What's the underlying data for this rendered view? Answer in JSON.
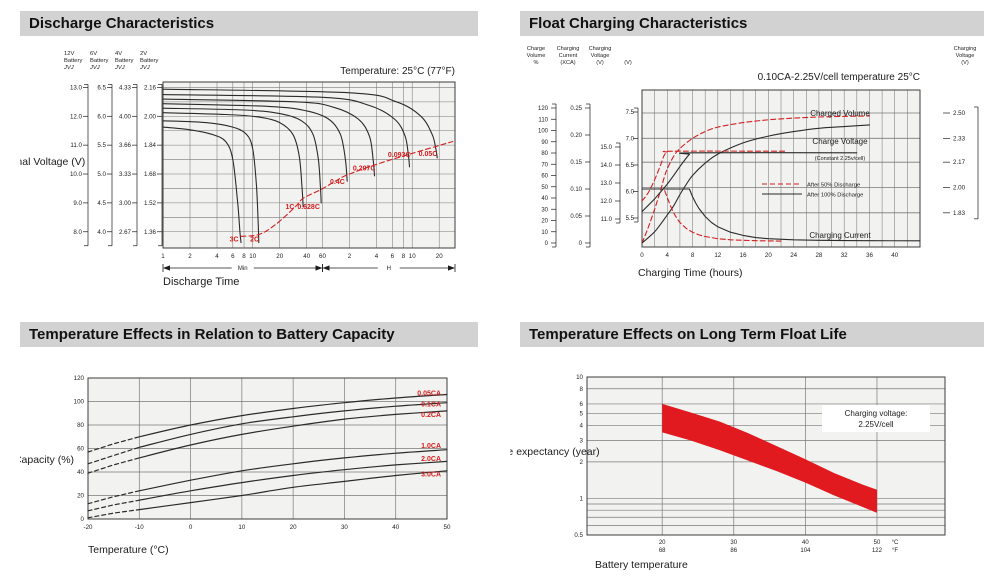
{
  "page": {
    "bg": "#ffffff",
    "header_bg": "#d2d2d2",
    "text": "#1c1c1c",
    "red": "#d32020",
    "band_red": "#e11a1f",
    "plot_bg": "#f2f2f0",
    "grid": "#7a7a7a",
    "border": "#3c3c3c",
    "curve": "#2b2b2b"
  },
  "sections": [
    {
      "title": "Discharge Characteristics"
    },
    {
      "title": "Float Charging Characteristics"
    },
    {
      "title": "Temperature Effects in Relation to Battery Capacity"
    },
    {
      "title": "Temperature Effects on Long Term Float Life"
    }
  ],
  "chart_data": [
    {
      "id": "discharge",
      "type": "line",
      "annotation": "Temperature: 25°C (77°F)",
      "ylabel": "Terminal Voltage (V)",
      "xlabel": "Discharge Time",
      "x_axis": {
        "min_ticks": [
          1,
          2,
          4,
          6,
          8,
          10,
          20,
          40,
          60
        ],
        "hour_ticks": [
          2,
          4,
          6,
          8,
          10,
          20
        ],
        "min_label": "Min",
        "hour_label": "H",
        "t_min": 1,
        "t_max": 1800
      },
      "scales": [
        {
          "header": [
            "12V",
            "Battery",
            "JVJ"
          ],
          "values": [
            "13.0",
            "12.0",
            "11.0",
            "10.0",
            "9.0",
            "8.0"
          ]
        },
        {
          "header": [
            "6V",
            "Battery",
            "JVJ"
          ],
          "values": [
            "6.5",
            "6.0",
            "5.5",
            "5.0",
            "4.5",
            "4.0"
          ]
        },
        {
          "header": [
            "4V",
            "Battery",
            "JVJ"
          ],
          "values": [
            "4.33",
            "4.00",
            "3.66",
            "3.33",
            "3.00",
            "2.67"
          ]
        },
        {
          "header": [
            "2V",
            "Battery",
            "JVJ"
          ],
          "values": [
            "2.16",
            "2.00",
            "1.84",
            "1.68",
            "1.52",
            "1.36"
          ]
        }
      ],
      "cell_values": [
        2.16,
        2.0,
        1.84,
        1.68,
        1.52,
        1.36
      ],
      "v_top": 2.19,
      "v_bottom": 1.27,
      "grid_step": 0.08,
      "series": [
        {
          "label": "3C",
          "label_at": [
            6.2,
            1.305
          ],
          "pts": [
            [
              1,
              1.94
            ],
            [
              2,
              1.925
            ],
            [
              3.5,
              1.9
            ],
            [
              5,
              1.86
            ],
            [
              6,
              1.76
            ],
            [
              6.8,
              1.52
            ],
            [
              7.2,
              1.36
            ],
            [
              7.4,
              1.3
            ]
          ]
        },
        {
          "label": "2C",
          "label_at": [
            10.5,
            1.305
          ],
          "pts": [
            [
              1,
              1.975
            ],
            [
              3,
              1.965
            ],
            [
              6,
              1.94
            ],
            [
              8.5,
              1.9
            ],
            [
              10,
              1.82
            ],
            [
              11,
              1.62
            ],
            [
              11.5,
              1.42
            ],
            [
              11.7,
              1.3
            ]
          ]
        },
        {
          "label": "1C",
          "label_at": [
            26,
            1.485
          ],
          "pts": [
            [
              1,
              2.02
            ],
            [
              5,
              2.01
            ],
            [
              12,
              1.995
            ],
            [
              20,
              1.965
            ],
            [
              28,
              1.9
            ],
            [
              33,
              1.78
            ],
            [
              35.5,
              1.6
            ],
            [
              36.5,
              1.5
            ]
          ]
        },
        {
          "label": "0.628C",
          "label_at": [
            42,
            1.485
          ],
          "pts": [
            [
              1,
              2.045
            ],
            [
              8,
              2.035
            ],
            [
              20,
              2.015
            ],
            [
              35,
              1.975
            ],
            [
              47,
              1.9
            ],
            [
              54,
              1.76
            ],
            [
              57,
              1.6
            ],
            [
              58,
              1.52
            ]
          ]
        },
        {
          "label": "0.4C",
          "label_at": [
            88,
            1.625
          ],
          "pts": [
            [
              1,
              2.07
            ],
            [
              15,
              2.055
            ],
            [
              40,
              2.03
            ],
            [
              70,
              1.985
            ],
            [
              95,
              1.9
            ],
            [
              108,
              1.76
            ],
            [
              113,
              1.64
            ]
          ]
        },
        {
          "label": "0.207C",
          "label_at": [
            175,
            1.7
          ],
          "pts": [
            [
              1,
              2.095
            ],
            [
              30,
              2.08
            ],
            [
              80,
              2.05
            ],
            [
              150,
              1.985
            ],
            [
              200,
              1.89
            ],
            [
              220,
              1.76
            ],
            [
              228,
              1.67
            ]
          ]
        },
        {
          "label": "0.093C",
          "label_at": [
            430,
            1.775
          ],
          "pts": [
            [
              1,
              2.12
            ],
            [
              60,
              2.105
            ],
            [
              200,
              2.06
            ],
            [
              380,
              1.985
            ],
            [
              500,
              1.89
            ],
            [
              545,
              1.78
            ],
            [
              560,
              1.72
            ]
          ]
        },
        {
          "label": "0.05C",
          "label_at": [
            900,
            1.78
          ],
          "pts": [
            [
              1,
              2.15
            ],
            [
              120,
              2.13
            ],
            [
              400,
              2.08
            ],
            [
              750,
              2.0
            ],
            [
              1000,
              1.9
            ],
            [
              1100,
              1.82
            ],
            [
              1140,
              1.77
            ]
          ]
        }
      ],
      "envelope": [
        [
          7.4,
          1.335
        ],
        [
          11.7,
          1.345
        ],
        [
          18,
          1.4
        ],
        [
          30,
          1.5
        ],
        [
          36.5,
          1.545
        ],
        [
          58,
          1.595
        ],
        [
          80,
          1.635
        ],
        [
          113,
          1.675
        ],
        [
          228,
          1.73
        ],
        [
          560,
          1.79
        ],
        [
          1140,
          1.835
        ],
        [
          1700,
          1.86
        ]
      ]
    },
    {
      "id": "float",
      "type": "line",
      "title": "0.10CA-2.25V/cell  temperature 25°C",
      "xlabel": "Charging Time (hours)",
      "x_ticks": [
        0,
        4,
        8,
        12,
        16,
        20,
        24,
        28,
        32,
        36,
        40
      ],
      "x_max": 44,
      "x_grid_step": 2,
      "axes": {
        "volume": {
          "header": [
            "Charge",
            "Volume",
            "%"
          ],
          "ticks": [
            "0",
            "10",
            "20",
            "30",
            "40",
            "50",
            "60",
            "70",
            "80",
            "90",
            "100",
            "110",
            "120"
          ]
        },
        "current": {
          "header": [
            "Charging",
            "Current",
            "(XCA)"
          ],
          "ticks": [
            "0",
            "0.05",
            "0.10",
            "0.15",
            "0.20",
            "0.25"
          ]
        },
        "voltage12": {
          "header": [
            "Charging",
            "Voltage",
            "(V)"
          ],
          "ticks": [
            "11.0",
            "12.0",
            "13.0",
            "14.0",
            "15.0"
          ]
        },
        "voltage6": {
          "header": [
            "(V)"
          ],
          "ticks": [
            "5.5",
            "6.0",
            "6.5",
            "7.0",
            "7.5"
          ]
        },
        "right": {
          "header": [
            "Charging",
            "Voltage",
            "(V)"
          ],
          "ticks": [
            "1.83",
            "2.00",
            "2.17",
            "2.33",
            "2.50"
          ]
        }
      },
      "legend": [
        {
          "label": "After  50% Discharge",
          "style": "dashed-red"
        },
        {
          "label": "After 100% Discharge",
          "style": "solid-black"
        }
      ],
      "plot_labels": {
        "volume": "Charged Volume",
        "voltage": "Charge Voltage",
        "voltage_sub": "(Constant 2.25v/cell)",
        "current": "Charging Current"
      },
      "curves": {
        "volume_50": [
          [
            0,
            0
          ],
          [
            1,
            14
          ],
          [
            2,
            30
          ],
          [
            3,
            48
          ],
          [
            3.5,
            58
          ],
          [
            4,
            66
          ],
          [
            5,
            77
          ],
          [
            6,
            84
          ],
          [
            8,
            93
          ],
          [
            10,
            99
          ],
          [
            12,
            103
          ],
          [
            16,
            107
          ],
          [
            20,
            109.5
          ],
          [
            24,
            111
          ],
          [
            28,
            112
          ],
          [
            32,
            112.5
          ],
          [
            36,
            113
          ]
        ],
        "volume_100": [
          [
            0,
            0
          ],
          [
            2,
            10
          ],
          [
            4,
            25
          ],
          [
            5,
            33
          ],
          [
            6,
            43
          ],
          [
            7,
            52
          ],
          [
            8,
            60
          ],
          [
            10,
            71
          ],
          [
            12,
            79
          ],
          [
            16,
            89
          ],
          [
            20,
            95
          ],
          [
            24,
            99
          ],
          [
            28,
            102
          ],
          [
            32,
            103.5
          ],
          [
            36,
            105
          ]
        ],
        "voltage_50": [
          [
            0,
            5.82
          ],
          [
            1,
            5.98
          ],
          [
            2,
            6.22
          ],
          [
            3,
            6.52
          ],
          [
            3.5,
            6.68
          ],
          [
            4,
            6.74
          ],
          [
            5,
            6.76
          ],
          [
            23,
            6.76
          ]
        ],
        "voltage_100": [
          [
            0,
            5.62
          ],
          [
            1,
            5.74
          ],
          [
            2,
            5.86
          ],
          [
            3,
            6.0
          ],
          [
            4,
            6.14
          ],
          [
            5,
            6.3
          ],
          [
            6,
            6.47
          ],
          [
            7,
            6.63
          ],
          [
            7.5,
            6.7
          ],
          [
            8,
            6.73
          ],
          [
            34,
            6.73
          ]
        ],
        "current_50": [
          [
            0,
            0.1
          ],
          [
            3.5,
            0.1
          ],
          [
            4,
            0.084
          ],
          [
            4.5,
            0.069
          ],
          [
            5,
            0.056
          ],
          [
            5.5,
            0.046
          ],
          [
            6,
            0.038
          ],
          [
            7,
            0.027
          ],
          [
            8,
            0.02
          ],
          [
            9,
            0.015
          ],
          [
            10,
            0.012
          ],
          [
            12,
            0.008
          ],
          [
            14,
            0.006
          ],
          [
            16,
            0.005
          ],
          [
            18,
            0.0042
          ],
          [
            20,
            0.0038
          ],
          [
            22,
            0.0035
          ]
        ],
        "current_100": [
          [
            0,
            0.1
          ],
          [
            7.5,
            0.1
          ],
          [
            8,
            0.086
          ],
          [
            8.5,
            0.074
          ],
          [
            9,
            0.064
          ],
          [
            10,
            0.049
          ],
          [
            11,
            0.038
          ],
          [
            12,
            0.03
          ],
          [
            14,
            0.02
          ],
          [
            16,
            0.014
          ],
          [
            18,
            0.01
          ],
          [
            20,
            0.008
          ],
          [
            24,
            0.006
          ],
          [
            28,
            0.005
          ],
          [
            32,
            0.0045
          ],
          [
            36,
            0.0042
          ],
          [
            44,
            0.004
          ]
        ]
      }
    },
    {
      "id": "temp_capacity",
      "type": "line",
      "xlabel": "Temperature (°C)",
      "ylabel": "Capacity (%)",
      "x_ticks": [
        -20,
        -10,
        0,
        10,
        20,
        30,
        40,
        50
      ],
      "y_ticks": [
        0,
        20,
        40,
        60,
        80,
        100,
        120
      ],
      "x_range": [
        -20,
        50
      ],
      "y_range": [
        0,
        120
      ],
      "dash_until": -12,
      "temps": [
        -20,
        -15,
        -10,
        0,
        10,
        20,
        30,
        40,
        50
      ],
      "series": [
        {
          "label": "0.05CA",
          "label_value": 107,
          "caps": [
            57,
            64,
            70,
            80,
            88,
            94,
            99,
            103,
            106
          ]
        },
        {
          "label": "0.1CA",
          "label_value": 97.5,
          "caps": [
            47,
            54,
            61,
            72,
            81,
            87,
            92,
            96,
            99
          ]
        },
        {
          "label": "0.2CA",
          "label_value": 88.5,
          "caps": [
            39,
            46,
            52,
            63,
            72,
            79,
            85,
            89,
            92
          ]
        },
        {
          "label": "1.0CA",
          "label_value": 62,
          "caps": [
            13,
            19,
            24,
            33,
            41,
            47,
            52,
            56,
            59
          ]
        },
        {
          "label": "2.0CA",
          "label_value": 51,
          "caps": [
            7,
            12,
            16,
            24,
            31,
            37,
            42,
            46,
            49
          ]
        },
        {
          "label": "3.0CA",
          "label_value": 38,
          "caps": [
            1,
            5,
            8,
            14,
            20,
            27,
            32,
            37,
            41
          ]
        }
      ]
    },
    {
      "id": "float_life",
      "type": "area",
      "xlabel": "Battery temperature",
      "ylabel": "Life expectancy (year)",
      "annotation": [
        "Charging voltage:",
        "2.25V/cell"
      ],
      "x_range": [
        9.5,
        59.5
      ],
      "x_ticks": [
        {
          "c": "20",
          "f": "68"
        },
        {
          "c": "30",
          "f": "86"
        },
        {
          "c": "40",
          "f": "104"
        },
        {
          "c": "50",
          "f": "122"
        }
      ],
      "x_unit": {
        "c": "°C",
        "f": "°F"
      },
      "y_log_range": [
        0.5,
        10
      ],
      "y_labeled": [
        "10",
        "8",
        "6",
        "5",
        "4",
        "3",
        "2",
        "1",
        "0.5"
      ],
      "y_labeled_vals": [
        10,
        8,
        6,
        5,
        4,
        3,
        2,
        1,
        0.5
      ],
      "y_grid": [
        8,
        6,
        5,
        4,
        3,
        2,
        1,
        0.9,
        0.8,
        0.7,
        0.6
      ],
      "band_upper": [
        [
          20,
          6.0
        ],
        [
          24,
          5.1
        ],
        [
          28,
          4.3
        ],
        [
          32,
          3.45
        ],
        [
          36,
          2.7
        ],
        [
          40,
          2.1
        ],
        [
          44,
          1.62
        ],
        [
          48,
          1.3
        ],
        [
          50,
          1.18
        ]
      ],
      "band_lower": [
        [
          20,
          3.5
        ],
        [
          24,
          3.0
        ],
        [
          28,
          2.5
        ],
        [
          32,
          2.05
        ],
        [
          36,
          1.68
        ],
        [
          40,
          1.35
        ],
        [
          44,
          1.06
        ],
        [
          48,
          0.85
        ],
        [
          50,
          0.76
        ]
      ]
    }
  ]
}
